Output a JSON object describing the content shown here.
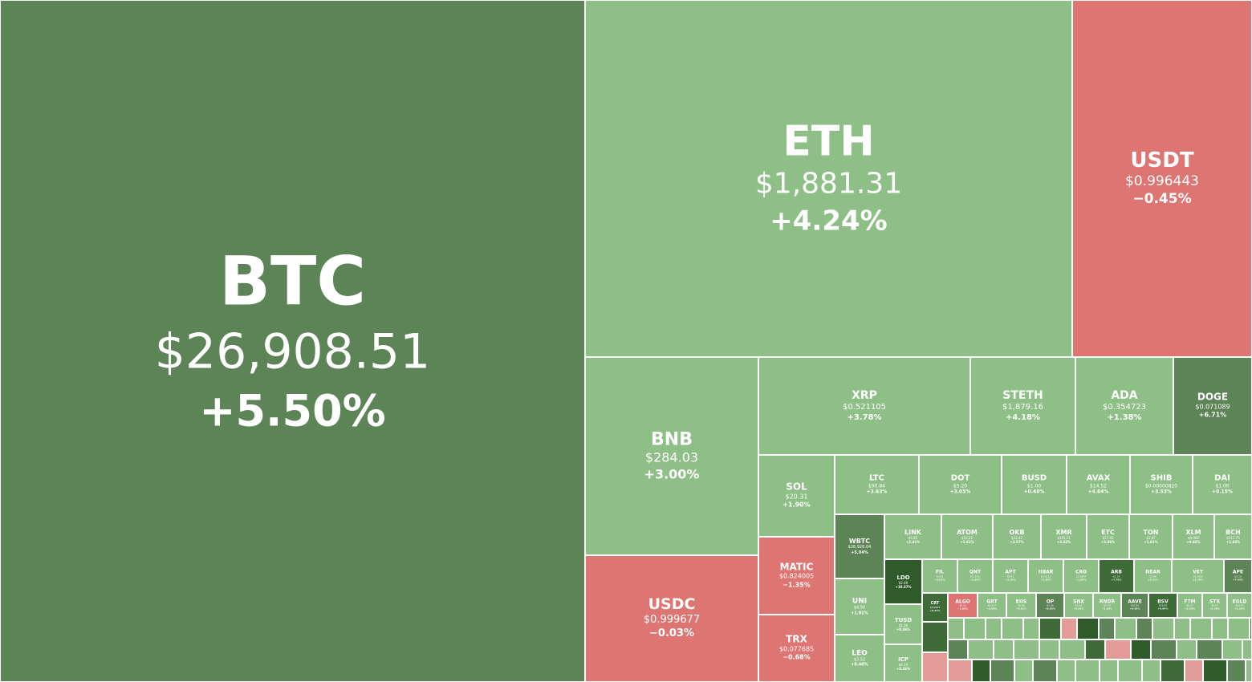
{
  "colors": {
    "gain_mid": "#5d8456",
    "gain_light": "#8ebf86",
    "gain_strong": "#3f6b39",
    "gain_dark": "#2f5a2a",
    "loss": "#dd7573",
    "loss_light": "#e39b98"
  },
  "chart_data": {
    "type": "treemap",
    "title": "",
    "value_field": "market cap (relative area)",
    "tiles": [
      {
        "symbol": "BTC",
        "price": "$26,908.51",
        "change": "+5.50%",
        "change_value": 5.5
      },
      {
        "symbol": "ETH",
        "price": "$1,881.31",
        "change": "+4.24%",
        "change_value": 4.24
      },
      {
        "symbol": "USDT",
        "price": "$0.996443",
        "change": "−0.45%",
        "change_value": -0.45
      },
      {
        "symbol": "BNB",
        "price": "$284.03",
        "change": "+3.00%",
        "change_value": 3.0
      },
      {
        "symbol": "USDC",
        "price": "$0.999677",
        "change": "−0.03%",
        "change_value": -0.03
      },
      {
        "symbol": "XRP",
        "price": "$0.521105",
        "change": "+3.78%",
        "change_value": 3.78
      },
      {
        "symbol": "STETH",
        "price": "$1,879.16",
        "change": "+4.18%",
        "change_value": 4.18
      },
      {
        "symbol": "ADA",
        "price": "$0.354723",
        "change": "+1.38%",
        "change_value": 1.38
      },
      {
        "symbol": "DOGE",
        "price": "$0.071089",
        "change": "+6.71%",
        "change_value": 6.71
      },
      {
        "symbol": "SOL",
        "price": "$20.31",
        "change": "+1.90%",
        "change_value": 1.9
      },
      {
        "symbol": "MATIC",
        "price": "$0.824005",
        "change": "−1.35%",
        "change_value": -1.35
      },
      {
        "symbol": "TRX",
        "price": "$0.077685",
        "change": "−0.68%",
        "change_value": -0.68
      },
      {
        "symbol": "LTC",
        "price": "$90.84",
        "change": "+3.63%",
        "change_value": 3.63
      },
      {
        "symbol": "DOT",
        "price": "$5.20",
        "change": "+3.05%",
        "change_value": 3.05
      },
      {
        "symbol": "BUSD",
        "price": "$1.00",
        "change": "+0.40%",
        "change_value": 0.4
      },
      {
        "symbol": "AVAX",
        "price": "$14.52",
        "change": "+4.64%",
        "change_value": 4.64
      },
      {
        "symbol": "SHIB",
        "price": "$0.00000820",
        "change": "+3.53%",
        "change_value": 3.53
      },
      {
        "symbol": "DAI",
        "price": "$1.00",
        "change": "+0.15%",
        "change_value": 0.15
      },
      {
        "symbol": "WBTC",
        "price": "$26,926.04",
        "change": "+5.04%",
        "change_value": 5.04
      },
      {
        "symbol": "UNI",
        "price": "$4.90",
        "change": "+1.91%",
        "change_value": 1.91
      },
      {
        "symbol": "LEO",
        "price": "$3.52",
        "change": "+0.40%",
        "change_value": 0.4
      },
      {
        "symbol": "LINK",
        "price": "$5.85",
        "change": "+2.41%",
        "change_value": 2.41
      },
      {
        "symbol": "ATOM",
        "price": "$10.22",
        "change": "+2.61%",
        "change_value": 2.61
      },
      {
        "symbol": "OKB",
        "price": "$43.42",
        "change": "+3.57%",
        "change_value": 3.57
      },
      {
        "symbol": "XMR",
        "price": "$145.11",
        "change": "+3.42%",
        "change_value": 3.42
      },
      {
        "symbol": "ETC",
        "price": "$17.45",
        "change": "+3.36%",
        "change_value": 3.36
      },
      {
        "symbol": "TON",
        "price": "$1.87",
        "change": "+1.01%",
        "change_value": 1.01
      },
      {
        "symbol": "XLM",
        "price": "$0.088",
        "change": "+0.46%",
        "change_value": 0.46
      },
      {
        "symbol": "BCH",
        "price": "$111.75",
        "change": "+1.66%",
        "change_value": 1.66
      },
      {
        "symbol": "LDO",
        "price": "$2.49",
        "change": "+10.37%",
        "change_value": 10.37
      },
      {
        "symbol": "TUSD",
        "price": "$1.00",
        "change": "+0.46%",
        "change_value": 0.46
      },
      {
        "symbol": "ICP",
        "price": "$4.14",
        "change": "+0.46%",
        "change_value": 0.46
      },
      {
        "symbol": "FIL",
        "price": "$3.83",
        "change": "+4.03%",
        "change_value": 4.03
      },
      {
        "symbol": "QNT",
        "price": "$113.83",
        "change": "+2.66%",
        "change_value": 2.66
      },
      {
        "symbol": "APT",
        "price": "$8.23",
        "change": "+3.39%",
        "change_value": 3.39
      },
      {
        "symbol": "HBAR",
        "price": "$0.0522",
        "change": "+2.26%",
        "change_value": 2.26
      },
      {
        "symbol": "CRO",
        "price": "$0.0594",
        "change": "+1.89%",
        "change_value": 1.89
      },
      {
        "symbol": "ARB",
        "price": "$1.14",
        "change": "+7.78%",
        "change_value": 7.78
      },
      {
        "symbol": "NEAR",
        "price": "$1.48",
        "change": "+4.31%",
        "change_value": 4.31
      },
      {
        "symbol": "VET",
        "price": "$0.0183",
        "change": "+3.76%",
        "change_value": 3.76
      },
      {
        "symbol": "APE",
        "price": "$3.15",
        "change": "+7.44%",
        "change_value": 7.44
      },
      {
        "symbol": "CRT",
        "price": "$0.0033",
        "change": "+6.21%",
        "change_value": 6.21
      },
      {
        "symbol": "ALGO",
        "price": "$0.12",
        "change": "−1.03%",
        "change_value": -1.03
      },
      {
        "symbol": "GRT",
        "price": "$0.117",
        "change": "+3.00%",
        "change_value": 3.0
      },
      {
        "symbol": "EOS",
        "price": "$0.86",
        "change": "+4.51%",
        "change_value": 4.51
      },
      {
        "symbol": "OP",
        "price": "$1.36",
        "change": "+6.02%",
        "change_value": 6.02
      },
      {
        "symbol": "SNX",
        "price": "$2.15",
        "change": "+6.59%",
        "change_value": 6.59
      },
      {
        "symbol": "RNDR",
        "price": "$2.44",
        "change": "+1.29%",
        "change_value": 1.29
      },
      {
        "symbol": "AAVE",
        "price": "$60.30",
        "change": "+6.58%",
        "change_value": 6.58
      },
      {
        "symbol": "BSV",
        "price": "$28.95",
        "change": "+6.84%",
        "change_value": 6.84
      },
      {
        "symbol": "FTM",
        "price": "$0.27",
        "change": "+2.19%",
        "change_value": 2.19
      },
      {
        "symbol": "STX",
        "price": "$0.57",
        "change": "+2.30%",
        "change_value": 2.3
      },
      {
        "symbol": "EGLD",
        "price": "$33.42",
        "change": "+2.16%",
        "change_value": 2.16
      }
    ]
  }
}
